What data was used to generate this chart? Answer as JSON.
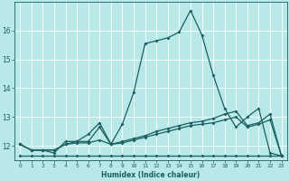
{
  "xlabel": "Humidex (Indice chaleur)",
  "ylabel": "",
  "bg_color": "#b8e8e8",
  "line_color": "#1a6060",
  "grid_color": "#d0f0f0",
  "xlim": [
    -0.5,
    23.5
  ],
  "ylim": [
    11.5,
    17.0
  ],
  "yticks": [
    12,
    13,
    14,
    15,
    16
  ],
  "xticks": [
    0,
    1,
    2,
    3,
    4,
    5,
    6,
    7,
    8,
    9,
    10,
    11,
    12,
    13,
    14,
    15,
    16,
    17,
    18,
    19,
    20,
    21,
    22,
    23
  ],
  "line1_x": [
    0,
    1,
    2,
    3,
    4,
    5,
    6,
    7,
    8,
    9,
    10,
    11,
    12,
    13,
    14,
    15,
    16,
    17,
    18,
    19,
    20,
    21,
    22,
    23
  ],
  "line1_y": [
    12.05,
    11.85,
    11.85,
    11.75,
    12.15,
    12.15,
    12.4,
    12.8,
    12.05,
    12.75,
    13.85,
    15.55,
    15.65,
    15.75,
    15.95,
    16.7,
    15.85,
    14.45,
    13.3,
    12.65,
    13.0,
    13.3,
    11.75,
    11.65
  ],
  "line2_x": [
    0,
    1,
    2,
    3,
    4,
    5,
    6,
    7,
    8,
    9,
    10,
    11,
    12,
    13,
    14,
    15,
    16,
    17,
    18,
    19,
    20,
    21,
    22,
    23
  ],
  "line2_y": [
    12.05,
    11.85,
    11.85,
    11.85,
    12.05,
    12.15,
    12.15,
    12.65,
    12.05,
    12.15,
    12.25,
    12.35,
    12.5,
    12.6,
    12.7,
    12.8,
    12.85,
    12.95,
    13.1,
    13.2,
    12.7,
    12.8,
    13.1,
    11.65
  ],
  "line3_x": [
    0,
    1,
    2,
    3,
    4,
    5,
    6,
    7,
    8,
    9,
    10,
    11,
    12,
    13,
    14,
    15,
    16,
    17,
    18,
    19,
    20,
    21,
    22,
    23
  ],
  "line3_y": [
    12.05,
    11.85,
    11.85,
    11.85,
    12.05,
    12.1,
    12.1,
    12.2,
    12.05,
    12.1,
    12.2,
    12.3,
    12.4,
    12.5,
    12.6,
    12.7,
    12.75,
    12.8,
    12.9,
    13.0,
    12.65,
    12.75,
    12.9,
    11.65
  ],
  "line4_x": [
    0,
    1,
    2,
    3,
    4,
    5,
    6,
    7,
    8,
    9,
    10,
    11,
    12,
    13,
    14,
    15,
    16,
    17,
    18,
    19,
    20,
    21,
    22,
    23
  ],
  "line4_y": [
    11.65,
    11.65,
    11.65,
    11.65,
    11.65,
    11.65,
    11.65,
    11.65,
    11.65,
    11.65,
    11.65,
    11.65,
    11.65,
    11.65,
    11.65,
    11.65,
    11.65,
    11.65,
    11.65,
    11.65,
    11.65,
    11.65,
    11.65,
    11.65
  ]
}
